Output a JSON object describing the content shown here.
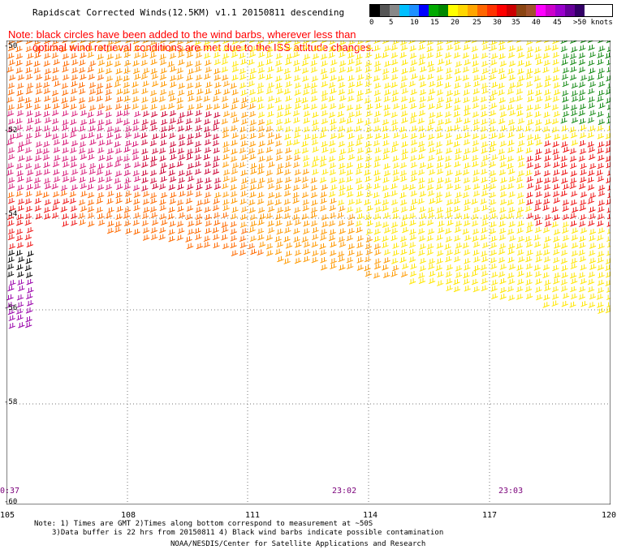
{
  "header": {
    "title": "Rapidscat Corrected Winds(12.5KM) v1.1 20150811 descending"
  },
  "note": {
    "line1": "Note: black circles have been added to the wind barbs, wherever less than",
    "line2": "optimal wind retrieval conditions are met due to the ISS attitude changes."
  },
  "legend": {
    "colors": [
      "#000000",
      "#555555",
      "#888888",
      "#00bfff",
      "#1e90ff",
      "#0000ff",
      "#00aa00",
      "#008800",
      "#ffff00",
      "#ffd700",
      "#ffa500",
      "#ff6600",
      "#ff3300",
      "#ff0000",
      "#cc0000",
      "#8b4513",
      "#a0522d",
      "#ff00ff",
      "#cc00cc",
      "#9900cc",
      "#660099",
      "#330066"
    ],
    "labels": [
      "0",
      "5",
      "10",
      "15",
      "20",
      "25",
      "30",
      "35",
      "40",
      "45",
      ">50 knots"
    ]
  },
  "map": {
    "lat_labels": [
      "-50",
      "-52",
      "-54",
      "-56",
      "-58",
      "-60"
    ],
    "lon_labels": [
      "105",
      "108",
      "111",
      "114",
      "117",
      "120"
    ],
    "time_labels": [
      "0:37",
      "23:02",
      "23:03"
    ],
    "speed_colors": {
      "green": "#118811",
      "yellow": "#ffe600",
      "orange": "#ff9900",
      "darkorange": "#ff6a00",
      "red": "#ee1111",
      "crimson": "#cc0033",
      "magenta": "#d81b7a",
      "brown": "#8b3a1a",
      "purple": "#9900aa",
      "black": "#000000"
    }
  },
  "footer": {
    "line1": "Note: 1) Times are GMT 2)Times along bottom correspond to measurement at ~50S",
    "line2": "3)Data buffer is 22 hrs from 20150811 4) Black wind barbs indicate possible contamination",
    "line3": "NOAA/NESDIS/Center for Satellite Applications and Research"
  }
}
